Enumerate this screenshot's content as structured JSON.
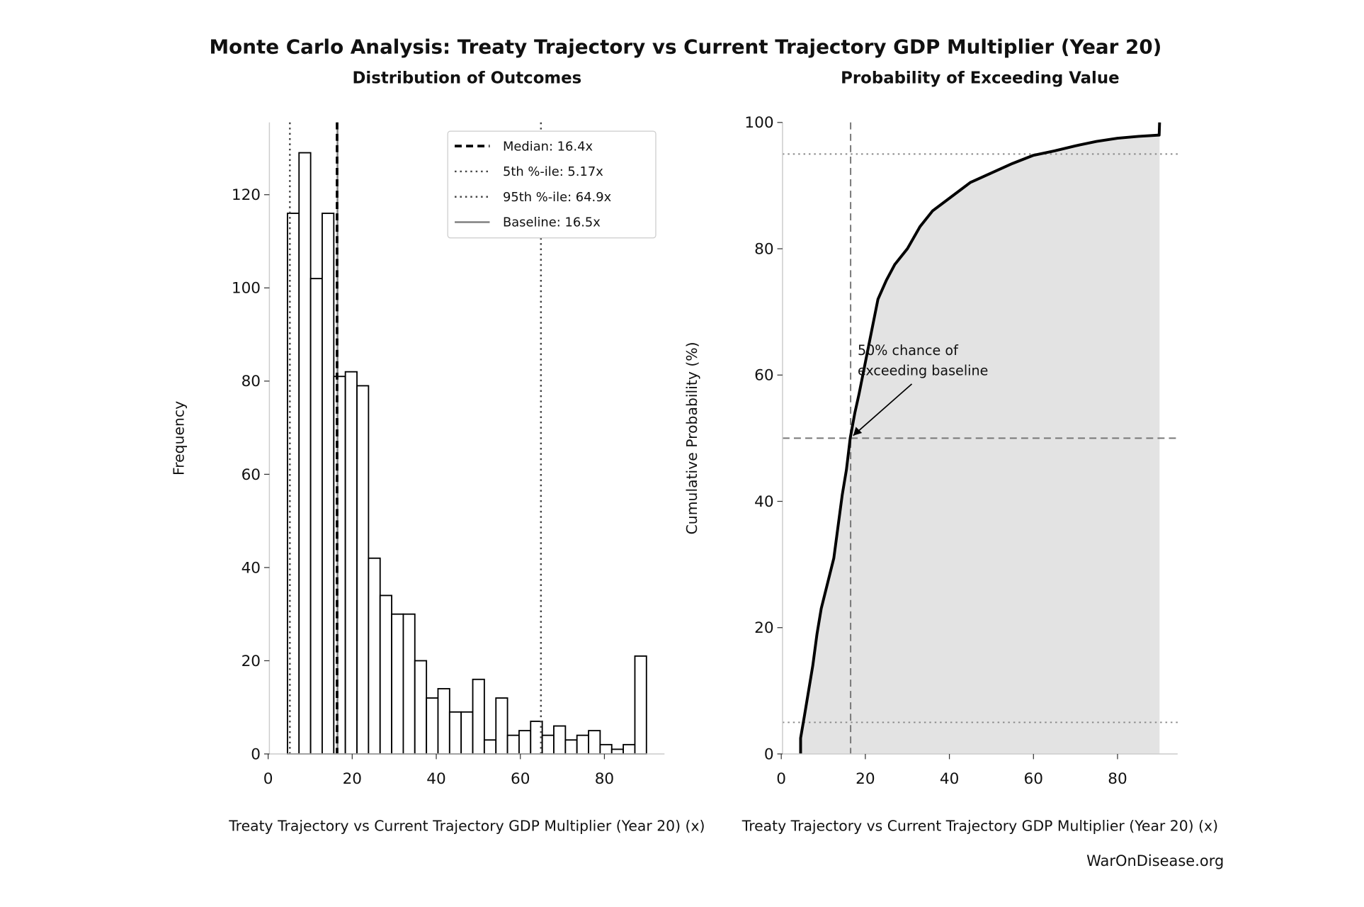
{
  "title": "Monte Carlo Analysis: Treaty Trajectory vs Current Trajectory GDP Multiplier (Year 20)",
  "footer": "WarOnDisease.org",
  "chart_data": [
    {
      "type": "histogram",
      "title": "Distribution of Outcomes",
      "xlabel": "Treaty Trajectory vs Current Trajectory GDP Multiplier (Year 20) (x)",
      "ylabel": "Frequency",
      "bins": [
        4.6,
        7.35,
        10.11,
        12.86,
        15.62,
        18.37,
        21.13,
        23.88,
        26.64,
        29.39,
        32.15,
        34.9,
        37.66,
        40.41,
        43.17,
        45.92,
        48.68,
        51.43,
        54.19,
        56.94,
        59.7,
        62.45,
        65.21,
        67.96,
        70.72,
        73.47,
        76.23,
        78.98,
        81.74,
        84.49,
        87.25,
        90.0
      ],
      "values": [
        116,
        129,
        102,
        116,
        81,
        82,
        79,
        42,
        34,
        30,
        30,
        20,
        12,
        14,
        9,
        9,
        16,
        3,
        12,
        4,
        5,
        7,
        4,
        6,
        3,
        4,
        5,
        2,
        1,
        2,
        21
      ],
      "color": "#ffffff",
      "edgecolor": "#000000",
      "xlim": [
        0.3,
        94.3
      ],
      "ylim": [
        0,
        135.5
      ],
      "xticks": [
        0,
        20,
        40,
        60,
        80
      ],
      "yticks": [
        0,
        20,
        40,
        60,
        80,
        100,
        120
      ],
      "legend": "upper right",
      "reference_lines": [
        {
          "name": "Median: 16.4x",
          "value": 16.4,
          "style": "dashed",
          "color": "#000000",
          "width": 3
        },
        {
          "name": "5th %-ile: 5.17x",
          "value": 5.17,
          "style": "dotted",
          "color": "#444444",
          "width": 2
        },
        {
          "name": "95th %-ile: 64.9x",
          "value": 64.9,
          "style": "dotted",
          "color": "#444444",
          "width": 2
        },
        {
          "name": "Baseline: 16.5x",
          "value": 16.5,
          "style": "solid",
          "color": "#808080",
          "width": 2
        }
      ]
    },
    {
      "type": "line",
      "title": "Probability of Exceeding Value",
      "xlabel": "Treaty Trajectory vs Current Trajectory GDP Multiplier (Year 20) (x)",
      "ylabel": "Cumulative Probability (%)",
      "x": [
        4.6,
        4.6,
        5.5,
        6.5,
        7.5,
        8.5,
        9.5,
        11,
        12.5,
        13.5,
        14.5,
        15.5,
        16.4,
        17.5,
        18.5,
        20,
        21.5,
        23,
        25,
        27,
        30,
        33,
        36,
        40,
        45,
        50,
        55,
        60,
        65,
        70,
        75,
        80,
        85,
        89.9,
        90
      ],
      "values": [
        0,
        2.5,
        6,
        10,
        14,
        19,
        23,
        27,
        31,
        36,
        41,
        45,
        50,
        54,
        57,
        62,
        67,
        72,
        75,
        77.5,
        80,
        83.5,
        86,
        88,
        90.5,
        92,
        93.5,
        94.8,
        95.5,
        96.3,
        97,
        97.5,
        97.8,
        98,
        100
      ],
      "color": "#000000",
      "fill": "#e3e3e3",
      "xlim": [
        0.3,
        94.3
      ],
      "ylim": [
        0,
        100
      ],
      "xticks": [
        0,
        20,
        40,
        60,
        80
      ],
      "yticks": [
        0,
        20,
        40,
        60,
        80,
        100
      ],
      "vlines": [
        {
          "value": 16.5,
          "style": "dashed",
          "color": "#777777"
        }
      ],
      "hlines": [
        {
          "value": 95,
          "style": "dotted",
          "color": "#888888"
        },
        {
          "value": 50,
          "style": "dashed",
          "color": "#777777"
        },
        {
          "value": 5,
          "style": "dotted",
          "color": "#888888"
        }
      ],
      "annotation": {
        "text": [
          "50% chance of",
          "exceeding baseline"
        ],
        "xy": [
          16.5,
          50
        ]
      }
    }
  ]
}
